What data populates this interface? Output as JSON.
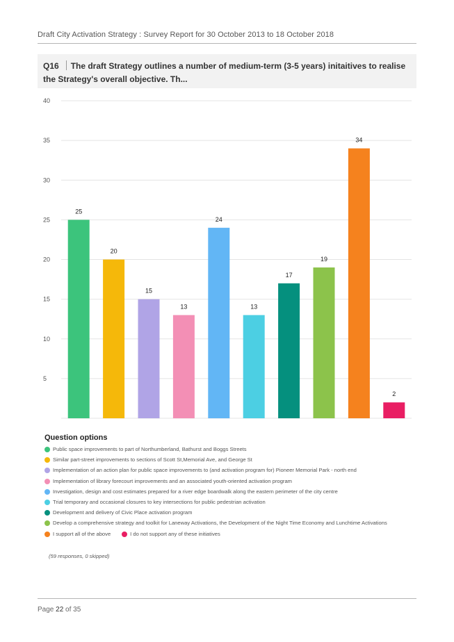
{
  "header": {
    "text": "Draft City Activation Strategy : Survey Report for 30 October 2013 to 18 October 2018"
  },
  "question": {
    "number": "Q16",
    "text": "The draft Strategy outlines a number of medium-term (3-5 years) initaitives to realise the Strategy's overall objective. Th..."
  },
  "chart_data": {
    "type": "bar",
    "categories": [
      "Public space improvements to part of Northumberland, Bathurst and Boggs Streets",
      "Similar part-street improvements to sections of Scott St,Memorial Ave, and George St",
      "Implementation of an action plan for public space improvements to (and activation program for) Pioneer Memorial Park - north end",
      "Implementation of library forecourt improvements and an associated youth-oriented activation program",
      "Investigation, design and cost estimates prepared for a river edge boardwalk along the eastern perimeter of the city centre",
      "Trial temporary and occasional closures to key intersections for public pedestrian activation",
      "Development and delivery of Civic Place activation program",
      "Develop a comprehensive strategy and toolkit for Laneway Activations, the Development of the Night Time Economy and Lunchtime Activations",
      "I support all of the above",
      "I do not support any of these initiatives"
    ],
    "values": [
      25,
      20,
      15,
      13,
      24,
      13,
      17,
      19,
      34,
      2
    ],
    "colors": [
      "#3cc47c",
      "#f5b80a",
      "#b0a4e6",
      "#f38fb5",
      "#62b6f5",
      "#4ccfe3",
      "#05907e",
      "#8cc34b",
      "#f5821e",
      "#e91e63"
    ],
    "ylim": [
      0,
      40
    ],
    "yticks": [
      5,
      10,
      15,
      20,
      25,
      30,
      35,
      40
    ],
    "grid": true
  },
  "options_title": "Question options",
  "options": [
    {
      "label": "Public space improvements to part of Northumberland, Bathurst and Boggs Streets",
      "color": "#3cc47c"
    },
    {
      "label": "Similar part-street improvements to sections of Scott St,Memorial Ave, and George St",
      "color": "#f5b80a"
    },
    {
      "label": "Implementation of an action plan for public space improvements to (and activation program for) Pioneer Memorial Park - north end",
      "color": "#b0a4e6"
    },
    {
      "label": "Implementation of library forecourt improvements and an associated youth-oriented activation program",
      "color": "#f38fb5"
    },
    {
      "label": "Investigation, design and cost estimates prepared for a river edge boardwalk along the eastern perimeter of the city centre",
      "color": "#62b6f5"
    },
    {
      "label": "Trial temporary and occasional closures to key intersections for public pedestrian activation",
      "color": "#4ccfe3"
    },
    {
      "label": "Development and delivery of Civic Place activation program",
      "color": "#05907e"
    },
    {
      "label": "Develop a comprehensive strategy and toolkit for Laneway Activations, the Development of the Night Time Economy and Lunchtime Activations",
      "color": "#8cc34b"
    }
  ],
  "options_last_row": [
    {
      "label": "I support all of the above",
      "color": "#f5821e"
    },
    {
      "label": "I do not support any of these initiatives",
      "color": "#e91e63"
    }
  ],
  "responses": "(59 responses, 0 skipped)",
  "footer": {
    "page_prefix": "Page",
    "page_current": "22",
    "page_of": "of",
    "page_total": "35"
  }
}
